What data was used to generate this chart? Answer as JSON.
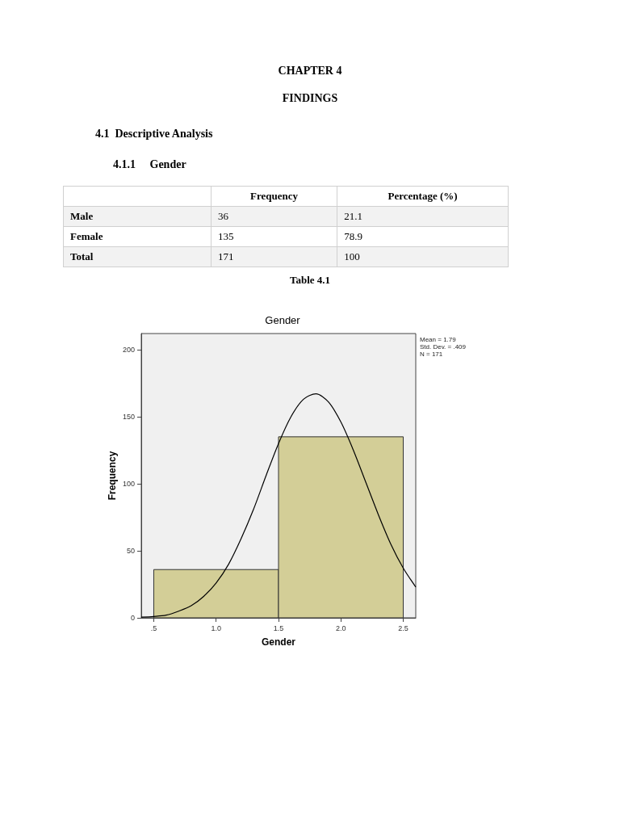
{
  "chart_data": {
    "type": "histogram",
    "title": "Gender",
    "xlabel": "Gender",
    "ylabel": "Frequency",
    "bins": [
      0.5,
      1.5,
      2.5
    ],
    "values": [
      36,
      135
    ],
    "color": "#d3ce97",
    "series": [
      {
        "type": "line",
        "color": "#000000",
        "x": [
          0.4,
          0.5,
          0.6,
          0.7,
          0.8,
          0.9,
          1.0,
          1.1,
          1.2,
          1.3,
          1.4,
          1.5,
          1.6,
          1.7,
          1.8,
          1.9,
          2.0,
          2.1,
          2.2,
          2.3,
          2.4,
          2.5,
          2.6
        ],
        "values": [
          0.5,
          1,
          2,
          5,
          9,
          16,
          26,
          40,
          59,
          81,
          106,
          130,
          150,
          163,
          167,
          161,
          146,
          125,
          101,
          77,
          55,
          37,
          23
        ]
      }
    ],
    "xlim": [
      0.4,
      2.6
    ],
    "xticks": [
      {
        "value": 0.5,
        "label": ".5"
      },
      {
        "value": 1.0,
        "label": "1.0"
      },
      {
        "value": 1.5,
        "label": "1.5"
      },
      {
        "value": 2.0,
        "label": "2.0"
      },
      {
        "value": 2.5,
        "label": "2.5"
      }
    ],
    "ylim": [
      0,
      212
    ],
    "yticks": [
      0,
      50,
      100,
      150,
      200
    ],
    "grid": false,
    "line_style": "solid",
    "marker": "none",
    "annotations": [
      "CHAPTER 4",
      "FINDINGS",
      "4.1  Descriptive Analysis",
      "4.1.1     Gender",
      "Frequency",
      "Percentage (%)",
      "Male",
      "36",
      "21.1",
      "Female",
      "135",
      "78.9",
      "Total",
      "171",
      "100",
      "Table 4.1",
      "Mean = 1.79",
      "Std. Dev. = .409",
      "N = 171"
    ]
  }
}
